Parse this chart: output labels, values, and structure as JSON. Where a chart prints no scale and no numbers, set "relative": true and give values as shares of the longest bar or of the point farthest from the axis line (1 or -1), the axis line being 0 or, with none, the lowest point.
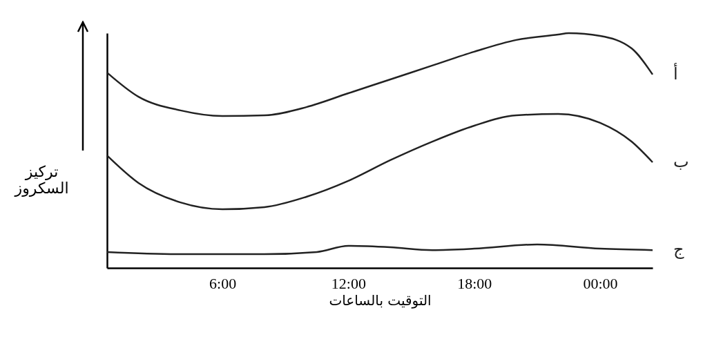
{
  "chart_data": {
    "type": "line",
    "relative": true,
    "xlabel": "التوقيت بالساعات",
    "ylabel": "تركيز\nالسكروز",
    "xlim": [
      0.5,
      26.5
    ],
    "xticks": [
      {
        "value": 6,
        "label": "6:00"
      },
      {
        "value": 12,
        "label": "12:00"
      },
      {
        "value": 18,
        "label": "18:00"
      },
      {
        "value": 24,
        "label": "00:00"
      }
    ],
    "grid": false,
    "legend": false,
    "marker": "none",
    "line_style": "solid",
    "series": [
      {
        "name": "أ",
        "color": "#222222",
        "x": [
          0.5,
          2,
          4,
          6,
          8,
          10,
          12,
          14,
          16,
          18,
          20,
          22,
          22.5,
          24,
          25.5,
          26.5
        ],
        "values": [
          0.832,
          0.729,
          0.671,
          0.647,
          0.65,
          0.685,
          0.744,
          0.803,
          0.862,
          0.921,
          0.971,
          0.994,
          1,
          0.988,
          0.935,
          0.824
        ]
      },
      {
        "name": "ب",
        "color": "#222222",
        "x": [
          0.5,
          2,
          4,
          6,
          8,
          10,
          12,
          14,
          16,
          18,
          20,
          22,
          24,
          25.5,
          26.5
        ],
        "values": [
          0.479,
          0.362,
          0.279,
          0.25,
          0.259,
          0.303,
          0.371,
          0.459,
          0.538,
          0.606,
          0.65,
          0.656,
          0.618,
          0.538,
          0.45
        ]
      },
      {
        "name": "ج",
        "color": "#222222",
        "x": [
          0.5,
          4,
          8,
          10.5,
          12,
          14,
          16,
          18,
          21,
          24,
          26.5
        ],
        "values": [
          0.068,
          0.059,
          0.059,
          0.068,
          0.094,
          0.088,
          0.076,
          0.082,
          0.1,
          0.082,
          0.076
        ]
      }
    ]
  }
}
